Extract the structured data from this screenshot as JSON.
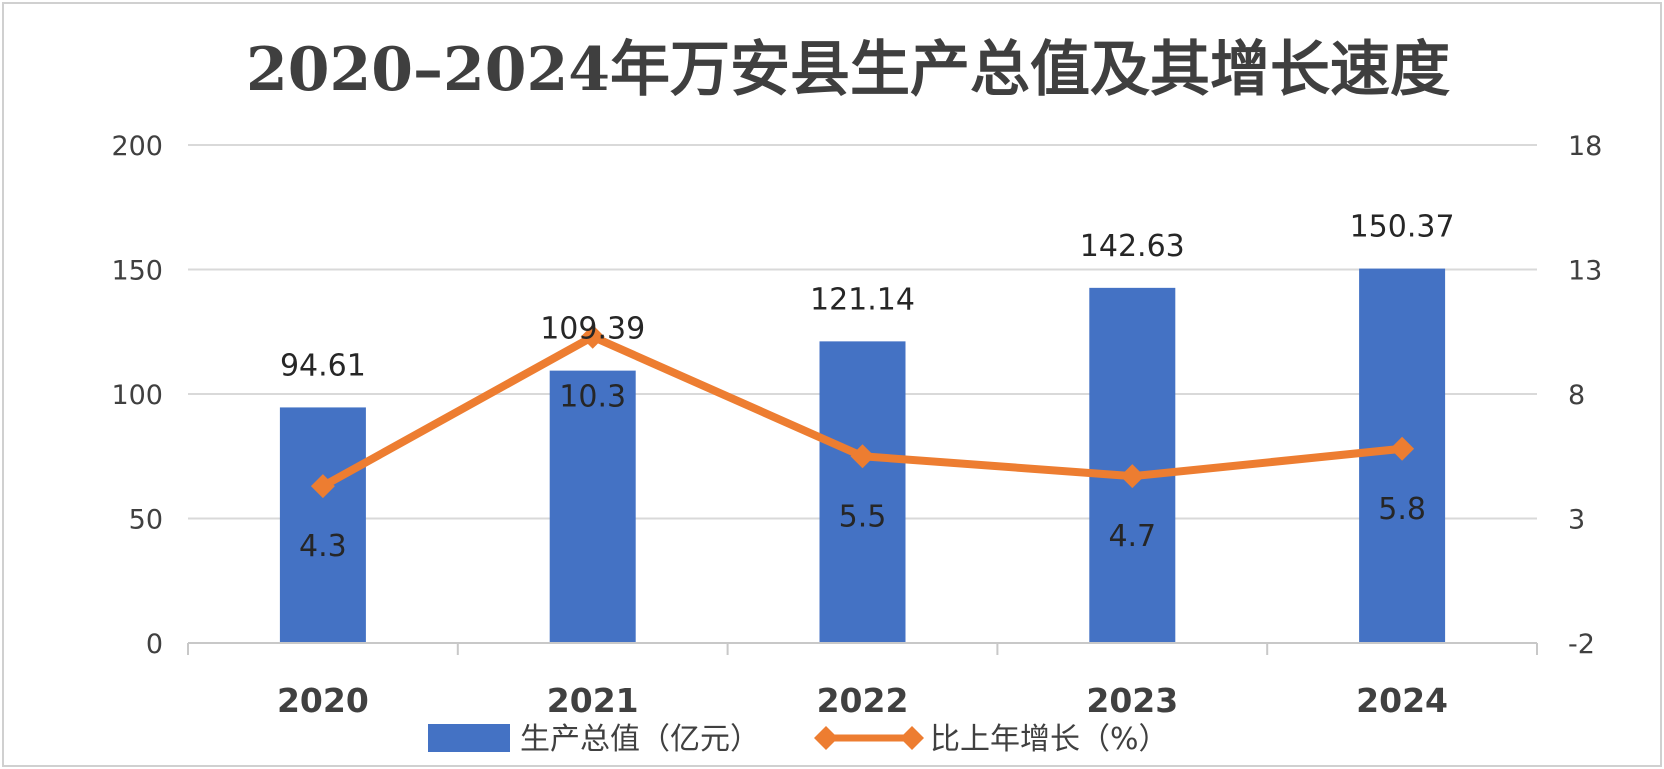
{
  "chart_data": {
    "type": "bar",
    "title": "2020–2024年万安县生产总值及其增长速度",
    "categories": [
      "2020",
      "2021",
      "2022",
      "2023",
      "2024"
    ],
    "series": [
      {
        "name": "生产总值（亿元）",
        "type": "bar",
        "axis": "left",
        "color": "#4472C4",
        "values": [
          94.61,
          109.39,
          121.14,
          142.63,
          150.37
        ],
        "labels": [
          "94.61",
          "109.39",
          "121.14",
          "142.63",
          "150.37"
        ]
      },
      {
        "name": "比上年增长（%）",
        "type": "line",
        "axis": "right",
        "color": "#ED7D31",
        "marker": "diamond",
        "values": [
          4.3,
          10.3,
          5.5,
          4.7,
          5.8
        ],
        "labels": [
          "4.3",
          "10.3",
          "5.5",
          "4.7",
          "5.8"
        ]
      }
    ],
    "y_left": {
      "lim": [
        0,
        200
      ],
      "ticks": [
        "0",
        "50",
        "100",
        "150",
        "200"
      ]
    },
    "y_right": {
      "lim": [
        -2,
        18
      ],
      "ticks": [
        "-2",
        "3",
        "8",
        "13",
        "18"
      ]
    },
    "grid": true,
    "legend": "bottom"
  }
}
